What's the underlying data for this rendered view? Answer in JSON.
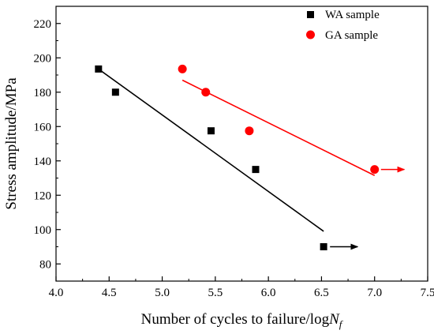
{
  "chart_data": {
    "type": "scatter",
    "title": "",
    "xlabel": "Number of cycles to failure/log",
    "xlabel_sym": "N",
    "xlabel_sub": "f",
    "ylabel": "Stress amplitude/MPa",
    "xlim": [
      4.0,
      7.5
    ],
    "ylim": [
      70,
      230
    ],
    "x_ticks": [
      4.0,
      4.5,
      5.0,
      5.5,
      6.0,
      6.5,
      7.0,
      7.5
    ],
    "x_tick_labels": [
      "4.0",
      "4.5",
      "5.0",
      "5.5",
      "6.0",
      "6.5",
      "7.0",
      "7.5"
    ],
    "y_ticks": [
      80,
      100,
      120,
      140,
      160,
      180,
      200,
      220
    ],
    "y_tick_labels": [
      "80",
      "100",
      "120",
      "140",
      "160",
      "180",
      "200",
      "220"
    ],
    "grid": false,
    "legend_position": "top-right",
    "series": [
      {
        "name": "WA sample",
        "marker": "square",
        "color": "#000000",
        "points": [
          [
            4.4,
            193.5
          ],
          [
            4.56,
            180
          ],
          [
            5.46,
            157.5
          ],
          [
            5.88,
            135
          ],
          [
            6.52,
            90
          ]
        ],
        "fit_line": [
          [
            4.4,
            193.5
          ],
          [
            6.52,
            99
          ]
        ],
        "runout_arrow": {
          "from": [
            6.58,
            90
          ],
          "to": [
            6.84,
            90
          ]
        }
      },
      {
        "name": "GA sample",
        "marker": "circle",
        "color": "#ff0000",
        "points": [
          [
            5.19,
            193.5
          ],
          [
            5.41,
            180
          ],
          [
            5.82,
            157.5
          ],
          [
            7.0,
            135
          ]
        ],
        "fit_line": [
          [
            5.19,
            187
          ],
          [
            7.0,
            131.5
          ]
        ],
        "runout_arrow": {
          "from": [
            7.06,
            135
          ],
          "to": [
            7.28,
            135
          ]
        }
      }
    ]
  }
}
